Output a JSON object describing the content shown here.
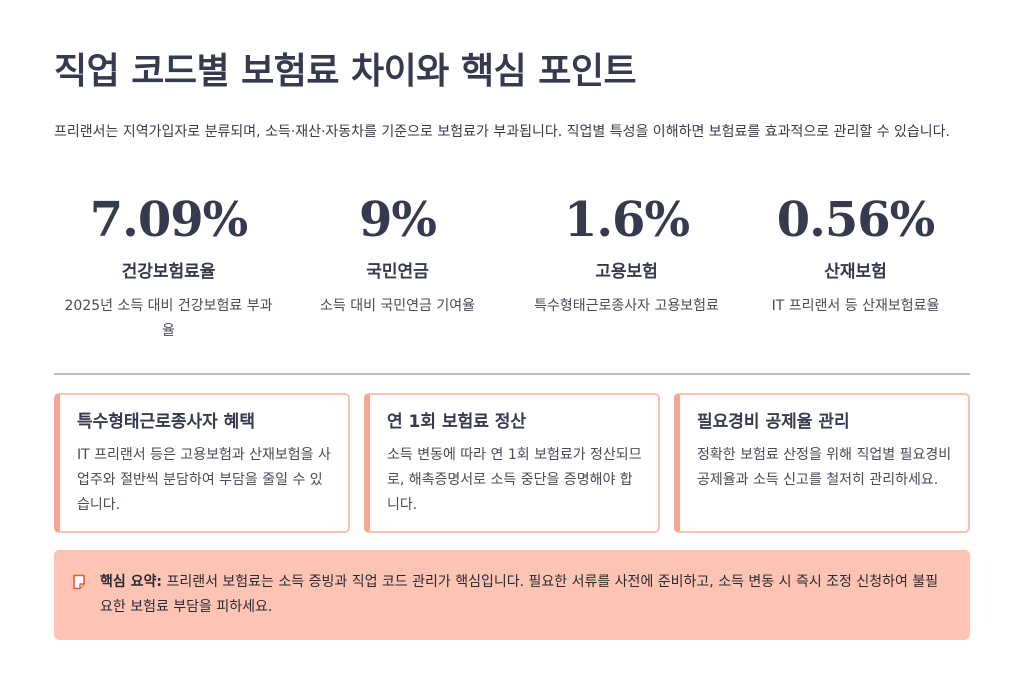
{
  "title": "직업 코드별 보험료 차이와 핵심 포인트",
  "intro": "프리랜서는 지역가입자로 분류되며, 소득·재산·자동차를 기준으로 보험료가 부과됩니다. 직업별 특성을 이해하면 보험료를 효과적으로 관리할 수 있습니다.",
  "stats": [
    {
      "value": "7.09%",
      "label": "건강보험료율",
      "desc": "2025년 소득 대비 건강보험료 부과율"
    },
    {
      "value": "9%",
      "label": "국민연금",
      "desc": "소득 대비 국민연금 기여율"
    },
    {
      "value": "1.6%",
      "label": "고용보험",
      "desc": "특수형태근로종사자 고용보험료"
    },
    {
      "value": "0.56%",
      "label": "산재보험",
      "desc": "IT 프리랜서 등 산재보험료율"
    }
  ],
  "cards": [
    {
      "title": "특수형태근로종사자 혜택",
      "body": "IT 프리랜서 등은 고용보험과 산재보험을 사업주와 절반씩 분담하여 부담을 줄일 수 있습니다."
    },
    {
      "title": "연 1회 보험료 정산",
      "body": "소득 변동에 따라 연 1회 보험료가 정산되므로, 해촉증명서로 소득 중단을 증명해야 합니다."
    },
    {
      "title": "필요경비 공제율 관리",
      "body": "정확한 보험료 산정을 위해 직업별 필요경비 공제율과 소득 신고를 철저히 관리하세요."
    }
  ],
  "summary": {
    "icon": "memo-icon",
    "label": "핵심 요약:",
    "text": " 프리랜서 보험료는 소득 증빙과 직업 코드 관리가 핵심입니다. 필요한 서류를 사전에 준비하고, 소득 변동 시 즉시 조정 신청하여 불필요한 보험료 부담을 피하세요."
  },
  "colors": {
    "heading": "#363a4e",
    "card_border": "#f9c2b4",
    "card_accent": "#f9a48e",
    "summary_bg": "#fdc4b4",
    "memo_icon": "#e8573f"
  }
}
